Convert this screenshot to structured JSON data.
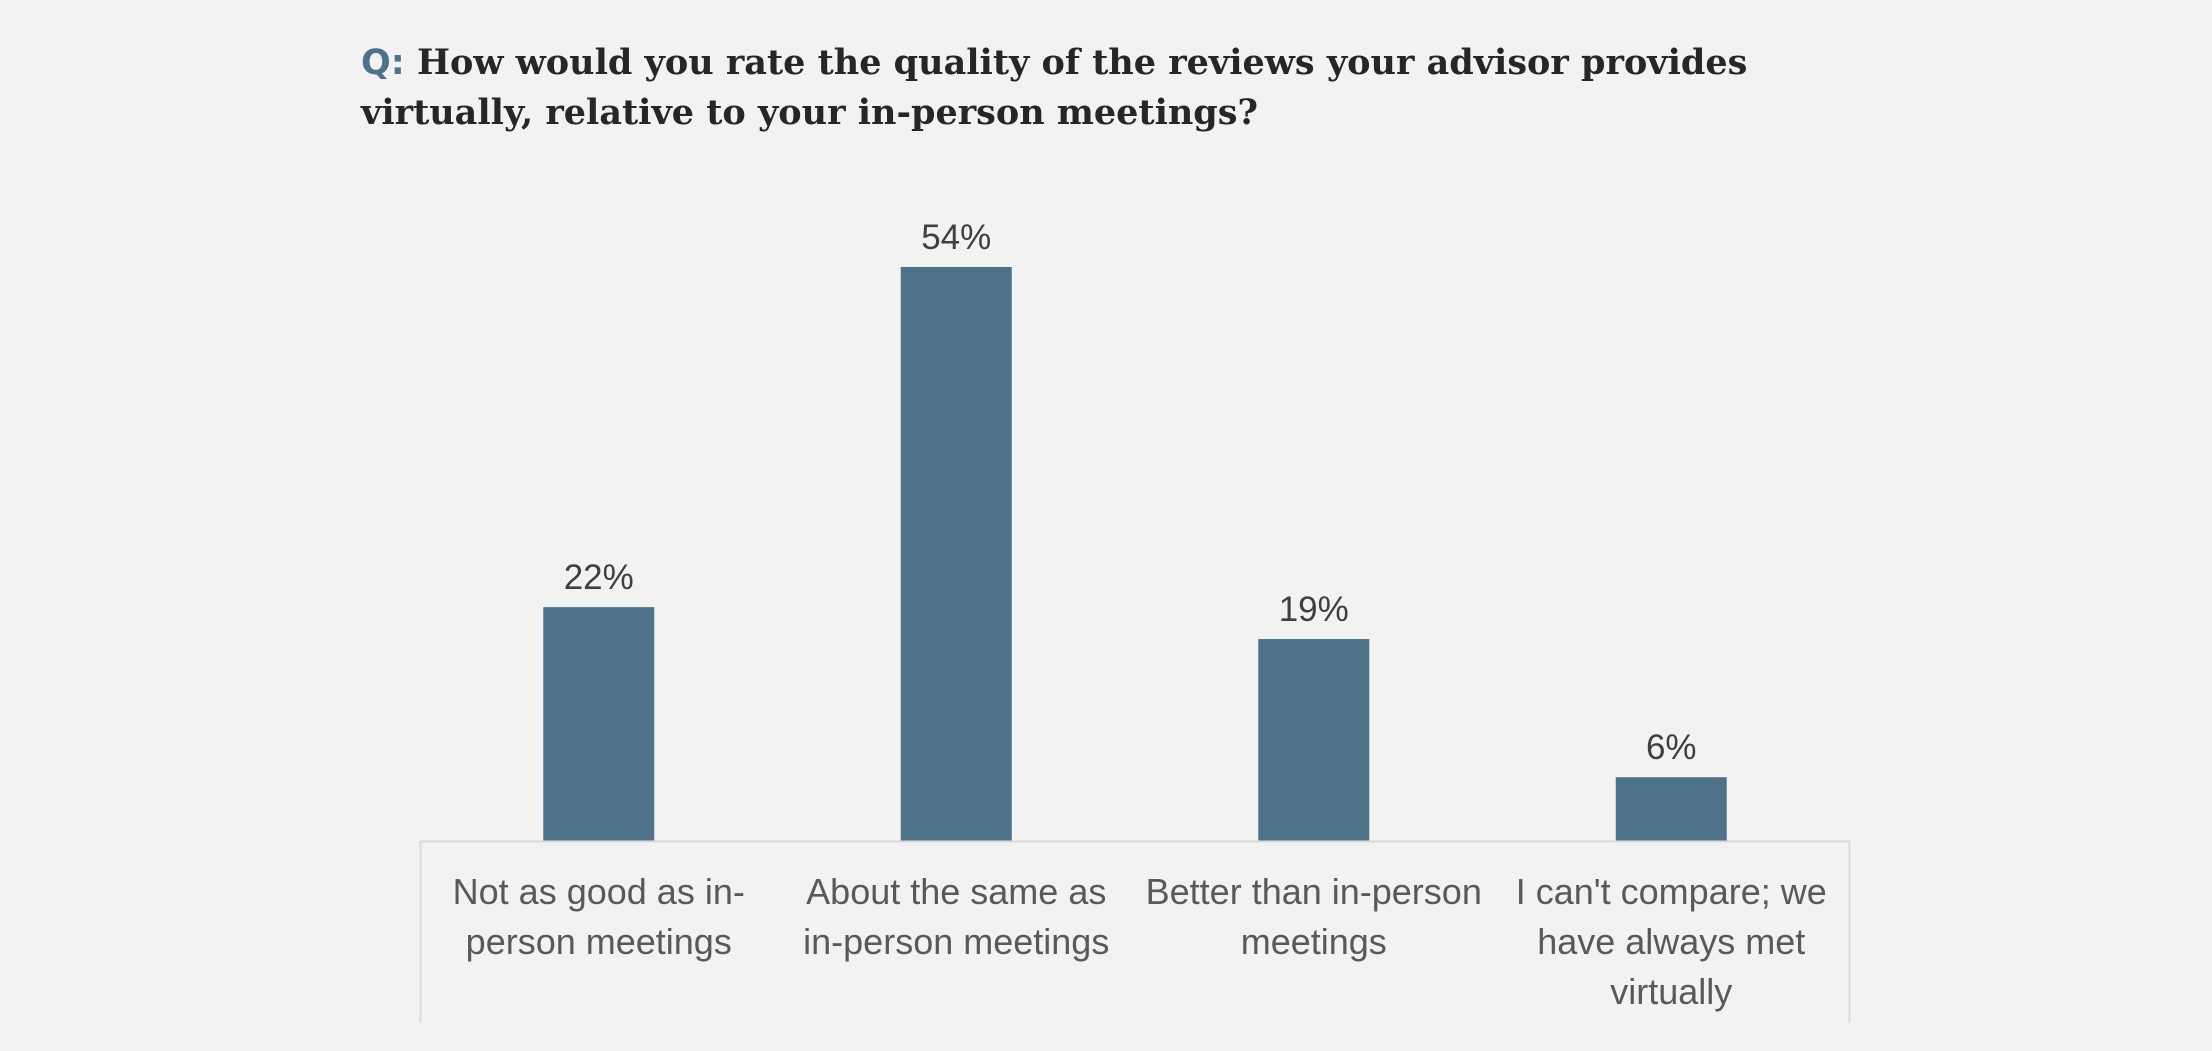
{
  "question": {
    "prefix": "Q:",
    "text": "How would you rate the quality of the reviews your advisor provides virtually, relative to your in-person meetings?"
  },
  "colors": {
    "bar": "#4e7389",
    "axis": "#d9d9d9",
    "background": "#f1f2f1",
    "prefix": "#4e7389"
  },
  "chart_data": {
    "type": "bar",
    "categories": [
      "Not as good as in-person meetings",
      "About the same as in-person meetings",
      "Better than in-person meetings",
      "I can't compare; we have always met virtually"
    ],
    "values": [
      22,
      54,
      19,
      6
    ],
    "data_labels": [
      "22%",
      "54%",
      "19%",
      "6%"
    ],
    "ylim": [
      0,
      56
    ],
    "grid": false,
    "legend": "none"
  }
}
